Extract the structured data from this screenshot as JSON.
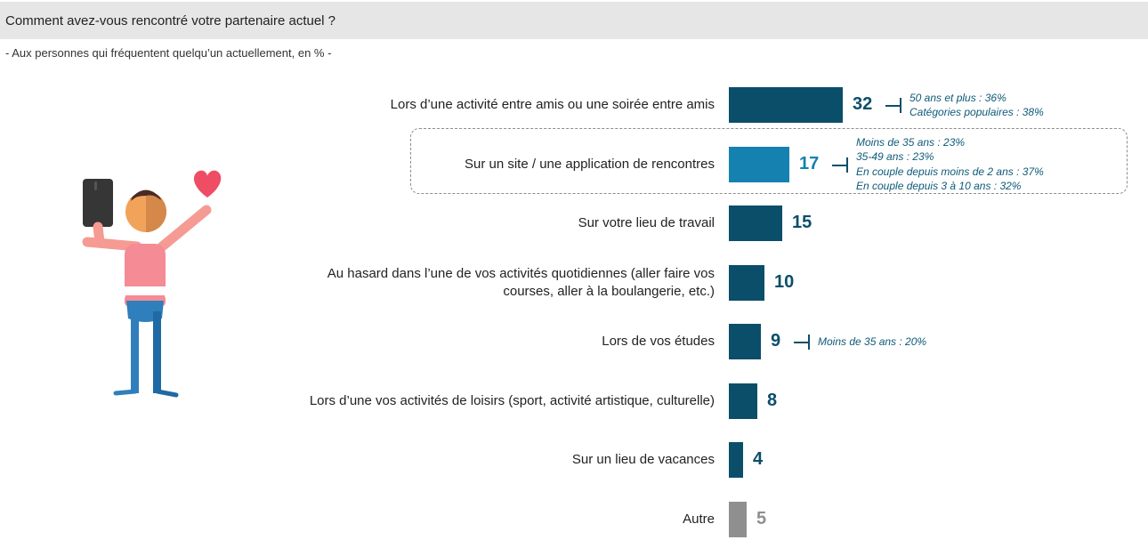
{
  "header": {
    "title": "Comment avez-vous rencontré votre partenaire actuel ?",
    "subtitle": "- Aux personnes qui fréquentent quelqu’un actuellement, en % -"
  },
  "colors": {
    "bar_primary": "#0b4e6a",
    "bar_highlight": "#1481b0",
    "bar_other": "#8f8f8f",
    "note_text": "#0e5a78",
    "title_band": "#e6e6e6"
  },
  "illustration": {
    "icons": [
      "person-icon",
      "phone-icon",
      "heart-icon"
    ]
  },
  "chart_data": {
    "type": "bar",
    "orientation": "horizontal",
    "title": "Comment avez-vous rencontré votre partenaire actuel ?",
    "subtitle": "- Aux personnes qui fréquentent quelqu’un actuellement, en % -",
    "categories": [
      "Lors d’une activité entre amis ou une soirée entre amis",
      "Sur un site / une application de rencontres",
      "Sur votre lieu de travail",
      "Au hasard dans l’une de vos activités quotidiennes (aller faire vos courses, aller à la boulangerie, etc.)",
      "Lors de vos études",
      "Lors d’une vos activités de loisirs (sport, activité artistique, culturelle)",
      "Sur un lieu de vacances",
      "Autre"
    ],
    "values": [
      32,
      17,
      15,
      10,
      9,
      8,
      4,
      5
    ],
    "unit": "%",
    "highlighted_category": "Sur un site / une application de rencontres",
    "annotations": [
      {
        "category": "Lors d’une activité entre amis ou une soirée entre amis",
        "lines": [
          "50 ans et plus : 36%",
          "Catégories populaires : 38%"
        ]
      },
      {
        "category": "Sur un site / une application de rencontres",
        "lines": [
          "Moins de 35 ans : 23%",
          "35-49 ans : 23%",
          "En couple depuis moins de 2 ans : 37%",
          "En couple depuis 3 à 10 ans : 32%"
        ]
      },
      {
        "category": "Lors de vos études",
        "lines": [
          "Moins de 35 ans : 20%"
        ]
      }
    ],
    "xlabel": "",
    "ylabel": "",
    "grid": false,
    "legend": false
  }
}
